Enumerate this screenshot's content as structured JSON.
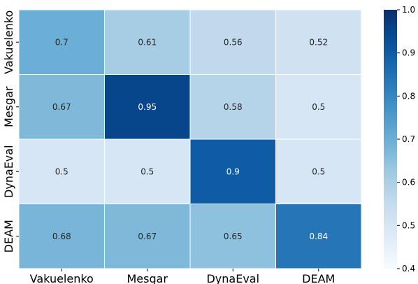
{
  "chart_data": {
    "type": "heatmap",
    "x_labels": [
      "Vakuelenko",
      "Mesgar",
      "DynaEval",
      "DEAM"
    ],
    "y_labels": [
      "Vakuelenko",
      "Mesgar",
      "DynaEval",
      "DEAM"
    ],
    "values": [
      [
        0.7,
        0.61,
        0.56,
        0.52
      ],
      [
        0.67,
        0.95,
        0.58,
        0.5
      ],
      [
        0.5,
        0.5,
        0.9,
        0.5
      ],
      [
        0.68,
        0.67,
        0.65,
        0.84
      ]
    ],
    "cell_labels": [
      [
        "0.7",
        "0.61",
        "0.56",
        "0.52"
      ],
      [
        "0.67",
        "0.95",
        "0.58",
        "0.5"
      ],
      [
        "0.5",
        "0.5",
        "0.9",
        "0.5"
      ],
      [
        "0.68",
        "0.67",
        "0.65",
        "0.84"
      ]
    ],
    "colorbar": {
      "min": 0.4,
      "max": 1.0,
      "ticks": [
        "0.4",
        "0.5",
        "0.6",
        "0.7",
        "0.8",
        "0.9",
        "1.0"
      ],
      "colormap": "Blues"
    },
    "title": "",
    "xlabel": "",
    "ylabel": ""
  }
}
